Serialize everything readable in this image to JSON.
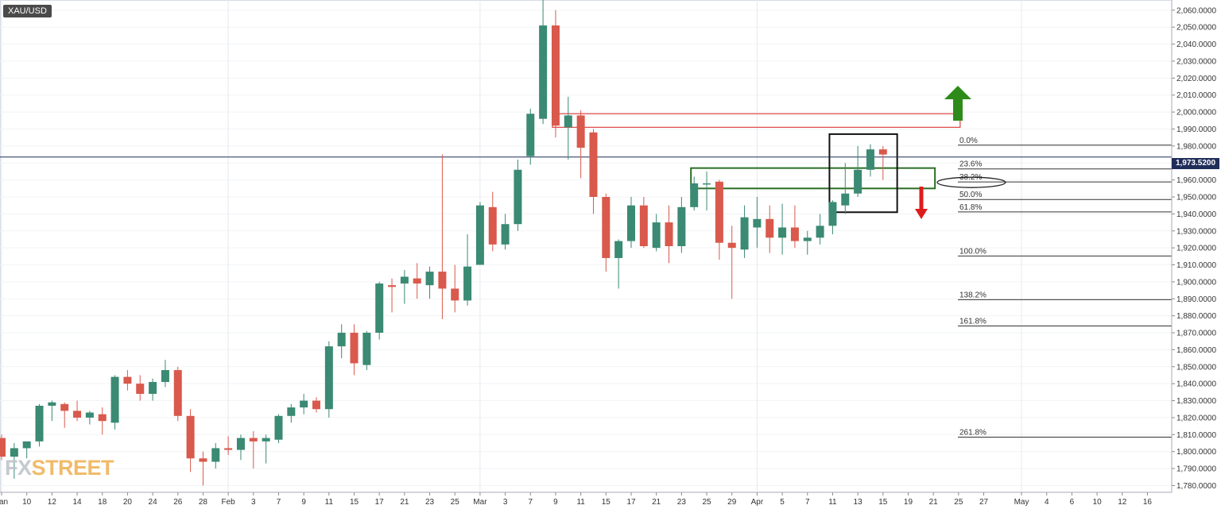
{
  "symbol": "XAU/USD",
  "watermark": {
    "prefix": "FX",
    "suffix": "STREET"
  },
  "current_price_label": "1,973.5200",
  "chart_data": {
    "type": "candlestick",
    "title": "XAU/USD",
    "ylim": [
      1776,
      2066
    ],
    "yticks": [
      {
        "v": 2060,
        "label": "2,060.0000"
      },
      {
        "v": 2050,
        "label": "2,050.0000"
      },
      {
        "v": 2040,
        "label": "2,040.0000"
      },
      {
        "v": 2030,
        "label": "2,030.0000"
      },
      {
        "v": 2020,
        "label": "2,020.0000"
      },
      {
        "v": 2010,
        "label": "2,010.0000"
      },
      {
        "v": 2000,
        "label": "2,000.0000"
      },
      {
        "v": 1990,
        "label": "1,990.0000"
      },
      {
        "v": 1980,
        "label": "1,980.0000"
      },
      {
        "v": 1970,
        "label": "1,970.0000"
      },
      {
        "v": 1960,
        "label": "1,960.0000"
      },
      {
        "v": 1950,
        "label": "1,950.0000"
      },
      {
        "v": 1940,
        "label": "1,940.0000"
      },
      {
        "v": 1930,
        "label": "1,930.0000"
      },
      {
        "v": 1920,
        "label": "1,920.0000"
      },
      {
        "v": 1910,
        "label": "1,910.0000"
      },
      {
        "v": 1900,
        "label": "1,900.0000"
      },
      {
        "v": 1890,
        "label": "1,890.0000"
      },
      {
        "v": 1880,
        "label": "1,880.0000"
      },
      {
        "v": 1870,
        "label": "1,870.0000"
      },
      {
        "v": 1860,
        "label": "1,860.0000"
      },
      {
        "v": 1850,
        "label": "1,850.0000"
      },
      {
        "v": 1840,
        "label": "1,840.0000"
      },
      {
        "v": 1830,
        "label": "1,830.0000"
      },
      {
        "v": 1820,
        "label": "1,820.0000"
      },
      {
        "v": 1810,
        "label": "1,810.0000"
      },
      {
        "v": 1800,
        "label": "1,800.0000"
      },
      {
        "v": 1790,
        "label": "1,790.0000"
      },
      {
        "v": 1780,
        "label": "1,780.0000"
      }
    ],
    "xticks": [
      {
        "label": "Jan",
        "idx": 0
      },
      {
        "label": "10",
        "idx": 2
      },
      {
        "label": "12",
        "idx": 4
      },
      {
        "label": "14",
        "idx": 6
      },
      {
        "label": "18",
        "idx": 8
      },
      {
        "label": "20",
        "idx": 10
      },
      {
        "label": "24",
        "idx": 12
      },
      {
        "label": "26",
        "idx": 14
      },
      {
        "label": "28",
        "idx": 16
      },
      {
        "label": "Feb",
        "idx": 18
      },
      {
        "label": "3",
        "idx": 20
      },
      {
        "label": "7",
        "idx": 22
      },
      {
        "label": "9",
        "idx": 24
      },
      {
        "label": "11",
        "idx": 26
      },
      {
        "label": "15",
        "idx": 28
      },
      {
        "label": "17",
        "idx": 30
      },
      {
        "label": "21",
        "idx": 32
      },
      {
        "label": "23",
        "idx": 34
      },
      {
        "label": "25",
        "idx": 36
      },
      {
        "label": "Mar",
        "idx": 38
      },
      {
        "label": "3",
        "idx": 40
      },
      {
        "label": "7",
        "idx": 42
      },
      {
        "label": "9",
        "idx": 44
      },
      {
        "label": "11",
        "idx": 46
      },
      {
        "label": "15",
        "idx": 48
      },
      {
        "label": "17",
        "idx": 50
      },
      {
        "label": "21",
        "idx": 52
      },
      {
        "label": "23",
        "idx": 54
      },
      {
        "label": "25",
        "idx": 56
      },
      {
        "label": "29",
        "idx": 58
      },
      {
        "label": "Apr",
        "idx": 60
      },
      {
        "label": "5",
        "idx": 62
      },
      {
        "label": "7",
        "idx": 64
      },
      {
        "label": "11",
        "idx": 66
      },
      {
        "label": "13",
        "idx": 68
      },
      {
        "label": "15",
        "idx": 70
      },
      {
        "label": "19",
        "idx": 72
      },
      {
        "label": "21",
        "idx": 74
      },
      {
        "label": "25",
        "idx": 76
      },
      {
        "label": "27",
        "idx": 78
      },
      {
        "label": "May",
        "idx": 81
      },
      {
        "label": "4",
        "idx": 83
      },
      {
        "label": "6",
        "idx": 85
      },
      {
        "label": "10",
        "idx": 87
      },
      {
        "label": "12",
        "idx": 89
      },
      {
        "label": "16",
        "idx": 91
      }
    ],
    "candles": [
      {
        "o": 1808,
        "h": 1810,
        "l": 1795,
        "c": 1797
      },
      {
        "o": 1797,
        "h": 1805,
        "l": 1784,
        "c": 1802
      },
      {
        "o": 1802,
        "h": 1806,
        "l": 1796,
        "c": 1806
      },
      {
        "o": 1806,
        "h": 1828,
        "l": 1803,
        "c": 1827
      },
      {
        "o": 1827,
        "h": 1830,
        "l": 1818,
        "c": 1829
      },
      {
        "o": 1828,
        "h": 1829,
        "l": 1814,
        "c": 1824
      },
      {
        "o": 1824,
        "h": 1830,
        "l": 1818,
        "c": 1820
      },
      {
        "o": 1820,
        "h": 1824,
        "l": 1816,
        "c": 1823
      },
      {
        "o": 1822,
        "h": 1826,
        "l": 1810,
        "c": 1818
      },
      {
        "o": 1817,
        "h": 1845,
        "l": 1813,
        "c": 1844
      },
      {
        "o": 1844,
        "h": 1848,
        "l": 1836,
        "c": 1840
      },
      {
        "o": 1840,
        "h": 1845,
        "l": 1830,
        "c": 1834
      },
      {
        "o": 1834,
        "h": 1843,
        "l": 1830,
        "c": 1841
      },
      {
        "o": 1841,
        "h": 1854,
        "l": 1838,
        "c": 1848
      },
      {
        "o": 1848,
        "h": 1850,
        "l": 1818,
        "c": 1821
      },
      {
        "o": 1821,
        "h": 1825,
        "l": 1788,
        "c": 1796
      },
      {
        "o": 1796,
        "h": 1800,
        "l": 1780,
        "c": 1794
      },
      {
        "o": 1794,
        "h": 1805,
        "l": 1790,
        "c": 1802
      },
      {
        "o": 1802,
        "h": 1809,
        "l": 1798,
        "c": 1801
      },
      {
        "o": 1801,
        "h": 1810,
        "l": 1795,
        "c": 1808
      },
      {
        "o": 1808,
        "h": 1812,
        "l": 1790,
        "c": 1806
      },
      {
        "o": 1806,
        "h": 1810,
        "l": 1793,
        "c": 1808
      },
      {
        "o": 1807,
        "h": 1822,
        "l": 1805,
        "c": 1821
      },
      {
        "o": 1821,
        "h": 1828,
        "l": 1817,
        "c": 1826
      },
      {
        "o": 1826,
        "h": 1834,
        "l": 1822,
        "c": 1830
      },
      {
        "o": 1830,
        "h": 1832,
        "l": 1823,
        "c": 1825
      },
      {
        "o": 1825,
        "h": 1865,
        "l": 1820,
        "c": 1862
      },
      {
        "o": 1862,
        "h": 1875,
        "l": 1855,
        "c": 1870
      },
      {
        "o": 1870,
        "h": 1875,
        "l": 1845,
        "c": 1852
      },
      {
        "o": 1851,
        "h": 1871,
        "l": 1848,
        "c": 1870
      },
      {
        "o": 1870,
        "h": 1900,
        "l": 1866,
        "c": 1899
      },
      {
        "o": 1898,
        "h": 1902,
        "l": 1882,
        "c": 1897
      },
      {
        "o": 1899,
        "h": 1907,
        "l": 1887,
        "c": 1903
      },
      {
        "o": 1902,
        "h": 1911,
        "l": 1890,
        "c": 1899
      },
      {
        "o": 1898,
        "h": 1909,
        "l": 1890,
        "c": 1906
      },
      {
        "o": 1906,
        "h": 1975,
        "l": 1878,
        "c": 1896
      },
      {
        "o": 1896,
        "h": 1910,
        "l": 1882,
        "c": 1889
      },
      {
        "o": 1889,
        "h": 1928,
        "l": 1886,
        "c": 1909
      },
      {
        "o": 1910,
        "h": 1947,
        "l": 1910,
        "c": 1945
      },
      {
        "o": 1944,
        "h": 1953,
        "l": 1918,
        "c": 1922
      },
      {
        "o": 1922,
        "h": 1940,
        "l": 1919,
        "c": 1934
      },
      {
        "o": 1934,
        "h": 1972,
        "l": 1930,
        "c": 1966
      },
      {
        "o": 1974,
        "h": 2002,
        "l": 1969,
        "c": 1999
      },
      {
        "o": 1996,
        "h": 2070,
        "l": 1993,
        "c": 2051
      },
      {
        "o": 2051,
        "h": 2060,
        "l": 1985,
        "c": 1992
      },
      {
        "o": 1991,
        "h": 2009,
        "l": 1972,
        "c": 1998
      },
      {
        "o": 1998,
        "h": 2001,
        "l": 1961,
        "c": 1979
      },
      {
        "o": 1988,
        "h": 1990,
        "l": 1940,
        "c": 1950
      },
      {
        "o": 1950,
        "h": 1952,
        "l": 1906,
        "c": 1914
      },
      {
        "o": 1914,
        "h": 1925,
        "l": 1896,
        "c": 1924
      },
      {
        "o": 1924,
        "h": 1950,
        "l": 1920,
        "c": 1945
      },
      {
        "o": 1945,
        "h": 1950,
        "l": 1920,
        "c": 1921
      },
      {
        "o": 1920,
        "h": 1940,
        "l": 1918,
        "c": 1935
      },
      {
        "o": 1935,
        "h": 1945,
        "l": 1911,
        "c": 1921
      },
      {
        "o": 1921,
        "h": 1950,
        "l": 1917,
        "c": 1944
      },
      {
        "o": 1944,
        "h": 1962,
        "l": 1942,
        "c": 1958
      },
      {
        "o": 1958,
        "h": 1965,
        "l": 1942,
        "c": 1958
      },
      {
        "o": 1959,
        "h": 1960,
        "l": 1913,
        "c": 1923
      },
      {
        "o": 1923,
        "h": 1933,
        "l": 1890,
        "c": 1920
      },
      {
        "o": 1919,
        "h": 1945,
        "l": 1914,
        "c": 1938
      },
      {
        "o": 1932,
        "h": 1950,
        "l": 1920,
        "c": 1937
      },
      {
        "o": 1937,
        "h": 1945,
        "l": 1917,
        "c": 1926
      },
      {
        "o": 1926,
        "h": 1946,
        "l": 1916,
        "c": 1932
      },
      {
        "o": 1932,
        "h": 1945,
        "l": 1920,
        "c": 1924
      },
      {
        "o": 1924,
        "h": 1930,
        "l": 1916,
        "c": 1926
      },
      {
        "o": 1926,
        "h": 1940,
        "l": 1922,
        "c": 1933
      },
      {
        "o": 1933,
        "h": 1948,
        "l": 1928,
        "c": 1947
      },
      {
        "o": 1945,
        "h": 1970,
        "l": 1940,
        "c": 1952
      },
      {
        "o": 1952,
        "h": 1980,
        "l": 1950,
        "c": 1966
      },
      {
        "o": 1966,
        "h": 1981,
        "l": 1962,
        "c": 1978
      },
      {
        "o": 1978,
        "h": 1980,
        "l": 1960,
        "c": 1975
      }
    ],
    "current_price": 1973.52,
    "fib_levels": [
      {
        "label": "0.0%",
        "price": 1980.5
      },
      {
        "label": "23.6%",
        "price": 1966.5
      },
      {
        "label": "38.2%",
        "price": 1958.8
      },
      {
        "label": "50.0%",
        "price": 1948.5
      },
      {
        "label": "61.8%",
        "price": 1941.2
      },
      {
        "label": "100.0%",
        "price": 1915.2
      },
      {
        "label": "138.2%",
        "price": 1889.5
      },
      {
        "label": "161.8%",
        "price": 1874.0
      },
      {
        "label": "261.8%",
        "price": 1808.5
      }
    ],
    "zones": [
      {
        "kind": "resistance",
        "color": "#e05050",
        "from_idx": 44,
        "to_idx": 76,
        "top": 1999,
        "bottom": 1991
      },
      {
        "kind": "support",
        "color": "#2b6e24",
        "from_idx": 55,
        "to_idx": 74,
        "top": 1967,
        "bottom": 1955
      },
      {
        "kind": "box",
        "color": "#111111",
        "from_idx": 66,
        "to_idx": 71,
        "top": 1987,
        "bottom": 1941
      }
    ],
    "arrows": [
      {
        "direction": "up",
        "color": "#2e8b19"
      },
      {
        "direction": "down",
        "color": "#e01b1b"
      }
    ],
    "colors": {
      "up": "#3b8a73",
      "down": "#d9594c",
      "price_line": "#1f2d59"
    }
  }
}
